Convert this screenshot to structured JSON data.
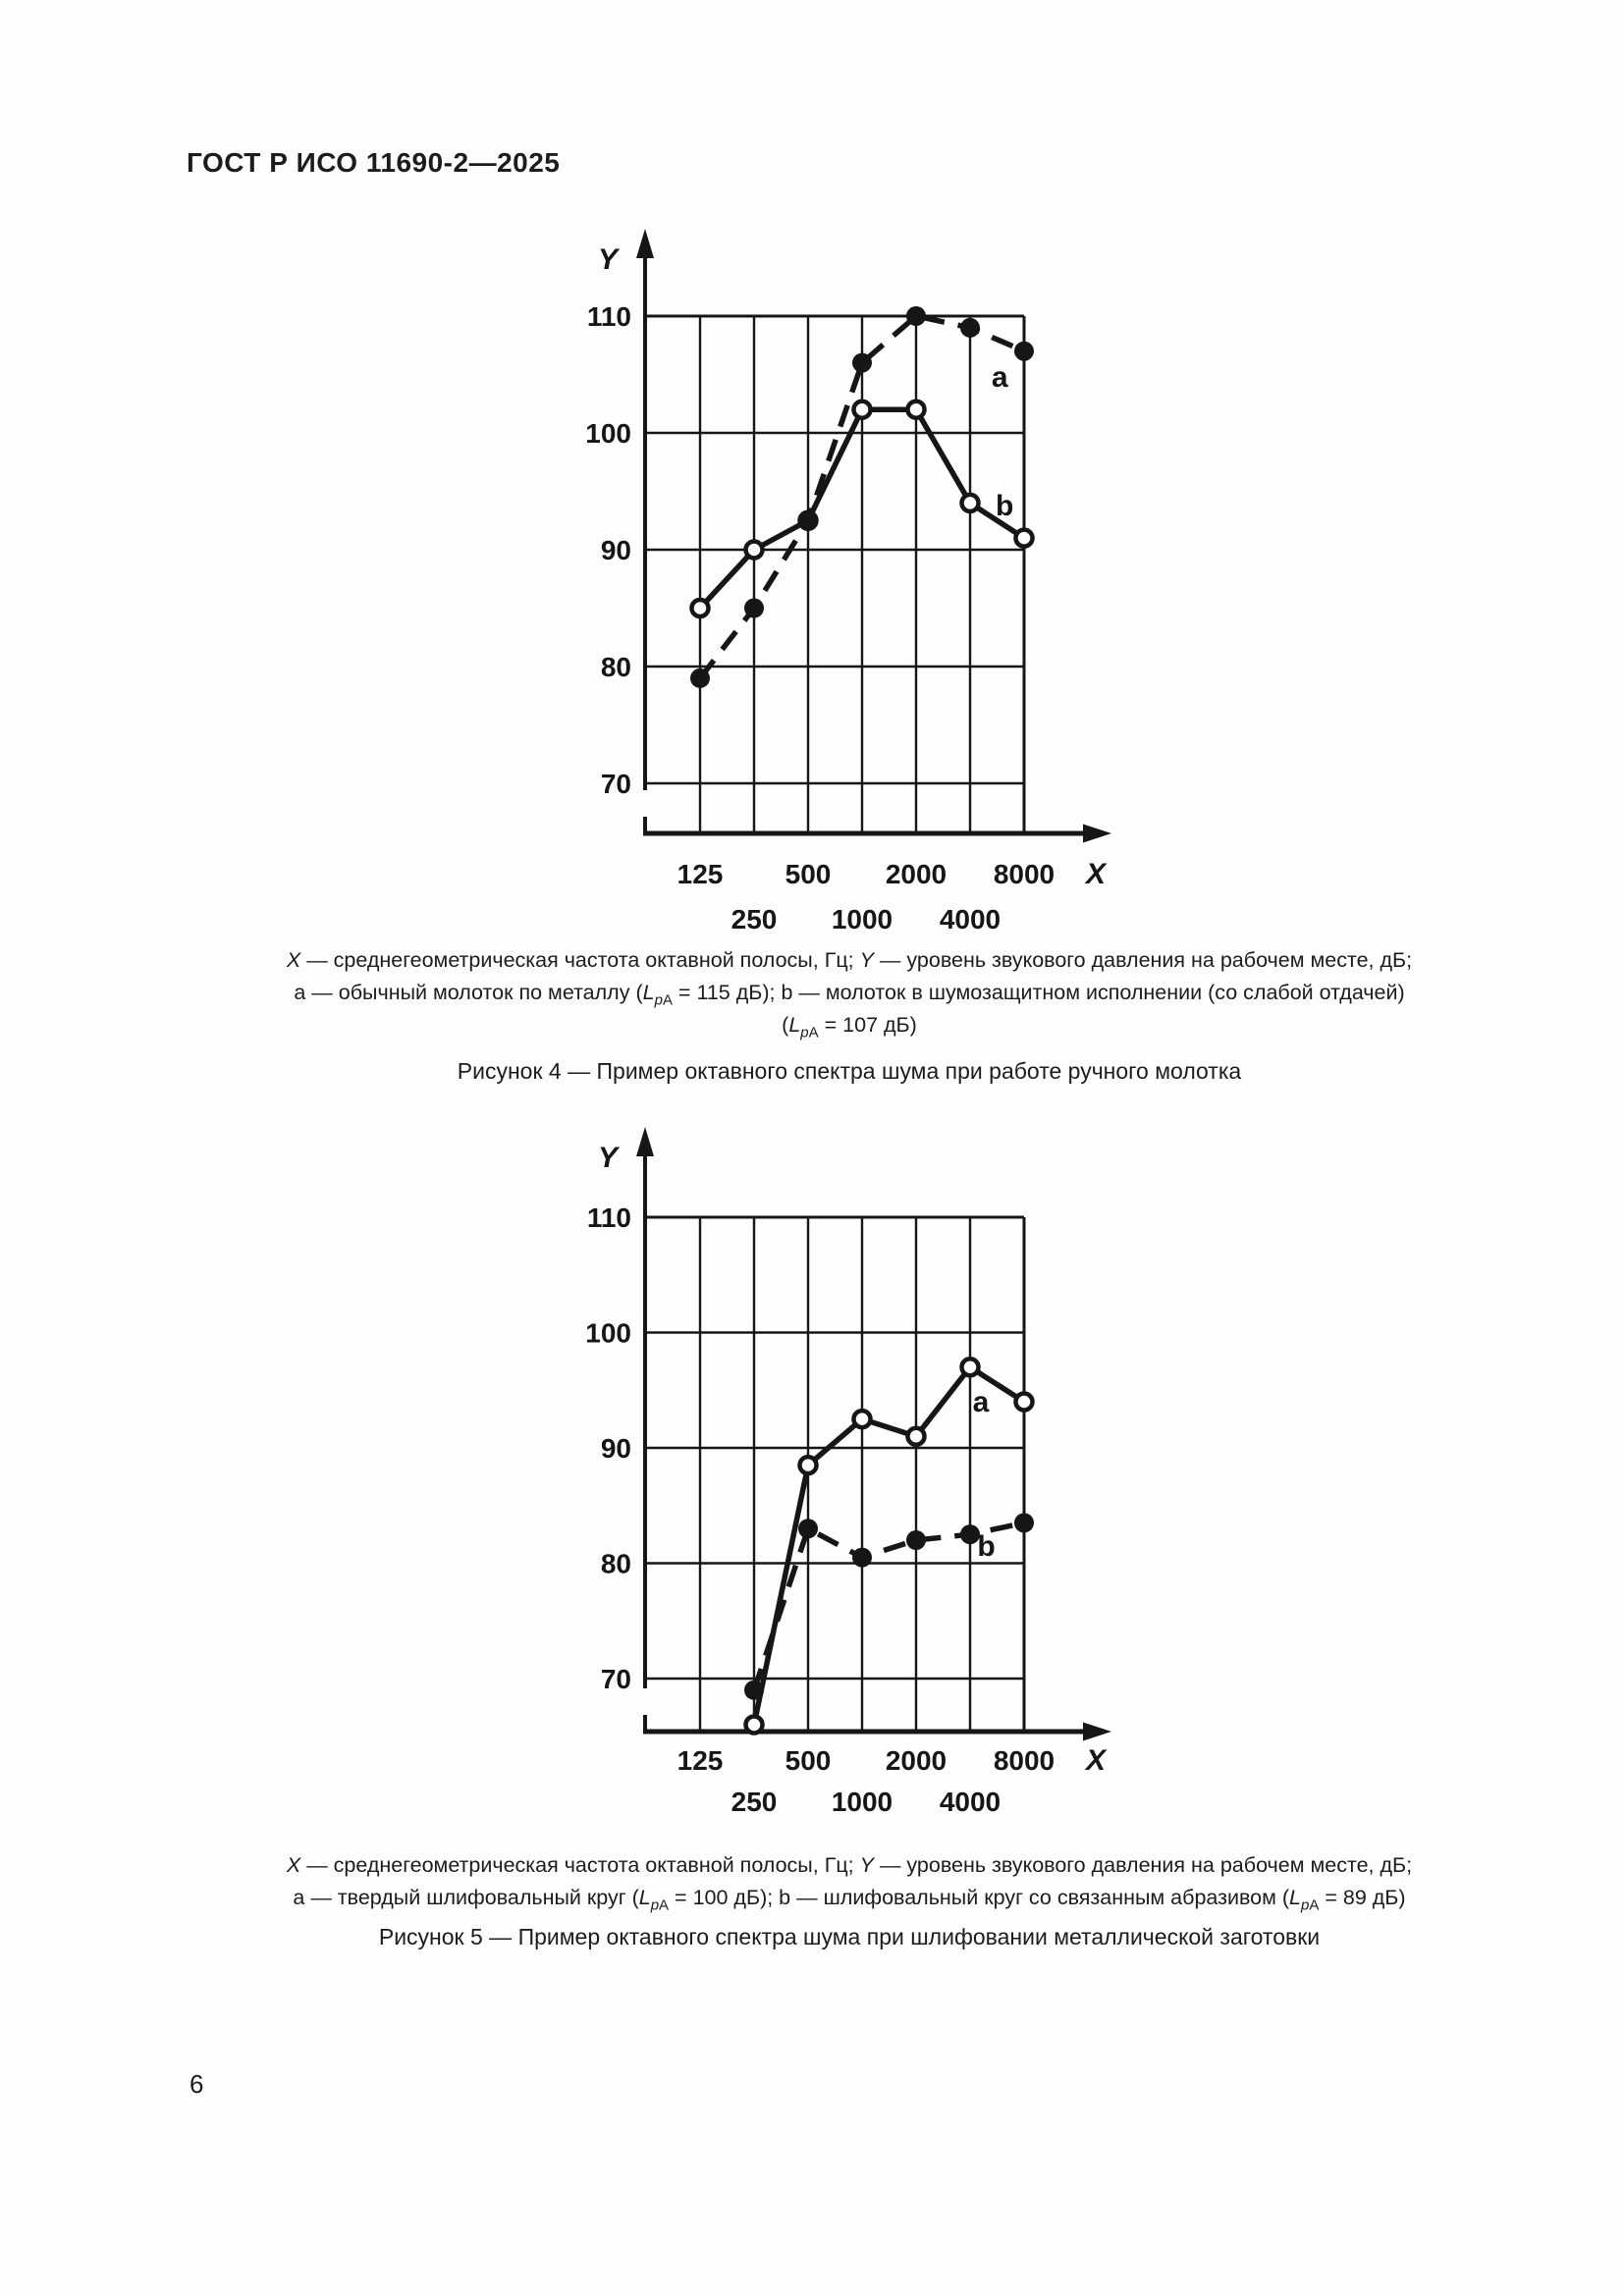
{
  "page": {
    "header_title": "ГОСТ Р ИСО 11690-2—2025",
    "page_number": "6"
  },
  "symbols": {
    "L": "L",
    "sub_p": "p",
    "sub_A": "A"
  },
  "chart_data": [
    {
      "id": "figure4",
      "type": "line",
      "title": "Октавный спектр шума при работе ручного молотка",
      "xlabel": "X",
      "ylabel": "Y",
      "x_categories_hz": [
        125,
        250,
        500,
        1000,
        2000,
        4000,
        8000
      ],
      "y_ticks": [
        110,
        100,
        90,
        80,
        70
      ],
      "x_tick_row1": [
        "125",
        "500",
        "2000",
        "8000"
      ],
      "x_tick_row2": [
        "250",
        "1000",
        "4000"
      ],
      "ylim": [
        66,
        110
      ],
      "grid": true,
      "series": [
        {
          "name": "b",
          "line": "solid",
          "marker": "open",
          "lpa_db": 107,
          "values": [
            85,
            90,
            92.5,
            102,
            102,
            94,
            91
          ],
          "label_at": {
            "ci": 5.64,
            "v": 93.8
          }
        },
        {
          "name": "a",
          "line": "dashed",
          "marker": "filled",
          "lpa_db": 115,
          "values": [
            79,
            85,
            92.5,
            106,
            110,
            109,
            107
          ],
          "label_at": {
            "ci": 5.55,
            "v": 104.8
          }
        }
      ]
    },
    {
      "id": "figure5",
      "type": "line",
      "title": "Октавный спектр шума при шлифовании металлической заготовки",
      "xlabel": "X",
      "ylabel": "Y",
      "x_categories_hz": [
        125,
        250,
        500,
        1000,
        2000,
        4000,
        8000
      ],
      "y_ticks": [
        110,
        100,
        90,
        80,
        70
      ],
      "x_tick_row1": [
        "125",
        "500",
        "2000",
        "8000"
      ],
      "x_tick_row2": [
        "250",
        "1000",
        "4000"
      ],
      "ylim": [
        65,
        110
      ],
      "grid": true,
      "series": [
        {
          "name": "a",
          "line": "solid",
          "marker": "open",
          "lpa_db": 100,
          "values": [
            null,
            66,
            88.5,
            92.5,
            91,
            97,
            94
          ],
          "label_at": {
            "ci": 5.2,
            "v": 94.0
          }
        },
        {
          "name": "b",
          "line": "dashed",
          "marker": "filled",
          "lpa_db": 89,
          "values": [
            null,
            69,
            83,
            80.5,
            82,
            82.5,
            83.5
          ],
          "label_at": {
            "ci": 5.3,
            "v": 81.5
          }
        }
      ]
    }
  ],
  "figure4": {
    "cap1_x": "X",
    "cap1_a": " — среднегеометрическая частота октавной полосы, Гц; ",
    "cap1_y": "Y",
    "cap1_b": " — уровень звукового давления на рабочем месте, дБ;",
    "cap2_pre": "a — обычный молоток по металлу (",
    "cap2_post": " = 115 дБ); b — молоток в шумозащитном исполнении (со слабой отдачей)",
    "cap3_pre": "(",
    "cap3_post": " = 107 дБ)",
    "figure_label": "Рисунок 4 — Пример октавного спектра шума при работе ручного молотка"
  },
  "figure5": {
    "cap1_x": "X",
    "cap1_a": " — среднегеометрическая частота октавной полосы, Гц; ",
    "cap1_y": "Y",
    "cap1_b": " — уровень звукового давления на рабочем месте, дБ;",
    "cap2_pre": "a — твердый шлифовальный круг (",
    "cap2_mid": " = 100 дБ); b — шлифовальный круг со связанным абразивом (",
    "cap2_post": " = 89 дБ)",
    "figure_label": "Рисунок 5 — Пример октавного спектра шума при шлифовании металлической заготовки"
  }
}
